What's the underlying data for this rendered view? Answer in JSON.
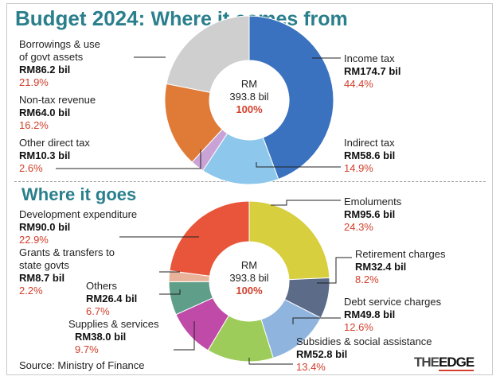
{
  "title": {
    "main": "Budget 2024:",
    "sub": "Where it comes from"
  },
  "section2_title": "Where it goes",
  "source": "Source: Ministry of Finance",
  "logo": {
    "prefix": "THE",
    "brand": "EDGE"
  },
  "chart_data": [
    {
      "type": "pie",
      "title": "Where it comes from",
      "center": {
        "label": "RM",
        "value": "393.8 bil",
        "pct": "100%"
      },
      "slices": [
        {
          "name": "Income tax",
          "value_label": "RM174.7 bil",
          "value": 174.7,
          "pct": "44.4%",
          "color": "#3a72bf"
        },
        {
          "name": "Indirect tax",
          "value_label": "RM58.6 bil",
          "value": 58.6,
          "pct": "14.9%",
          "color": "#8ec7ec"
        },
        {
          "name": "Other direct tax",
          "value_label": "RM10.3 bil",
          "value": 10.3,
          "pct": "2.6%",
          "color": "#c9a3d6"
        },
        {
          "name": "Non-tax revenue",
          "value_label": "RM64.0 bil",
          "value": 64.0,
          "pct": "16.2%",
          "color": "#e07a37"
        },
        {
          "name": "Borrowings & use\nof govt assets",
          "value_label": "RM86.2 bil",
          "value": 86.2,
          "pct": "21.9%",
          "color": "#cfcfcf"
        }
      ]
    },
    {
      "type": "pie",
      "title": "Where it goes",
      "center": {
        "label": "RM",
        "value": "393.8 bil",
        "pct": "100%"
      },
      "slices": [
        {
          "name": "Emoluments",
          "value_label": "RM95.6 bil",
          "value": 95.6,
          "pct": "24.3%",
          "color": "#d7cf3e"
        },
        {
          "name": "Retirement charges",
          "value_label": "RM32.4 bil",
          "value": 32.4,
          "pct": "8.2%",
          "color": "#5b6b88"
        },
        {
          "name": "Debt service charges",
          "value_label": "RM49.8 bil",
          "value": 49.8,
          "pct": "12.6%",
          "color": "#8fb4de"
        },
        {
          "name": "Subsidies & social assistance",
          "value_label": "RM52.8 bil",
          "value": 52.8,
          "pct": "13.4%",
          "color": "#9dcc5a"
        },
        {
          "name": "Supplies & services",
          "value_label": "RM38.0 bil",
          "value": 38.0,
          "pct": "9.7%",
          "color": "#c04aa8"
        },
        {
          "name": "Others",
          "value_label": "RM26.4 bil",
          "value": 26.4,
          "pct": "6.7%",
          "color": "#5f9f8a"
        },
        {
          "name": "Grants & transfers to\nstate govts",
          "value_label": "RM8.7 bil",
          "value": 8.7,
          "pct": "2.2%",
          "color": "#e8b39a"
        },
        {
          "name": "Development expenditure",
          "value_label": "RM90.0 bil",
          "value": 90.0,
          "pct": "22.9%",
          "color": "#e8553a"
        }
      ]
    }
  ]
}
